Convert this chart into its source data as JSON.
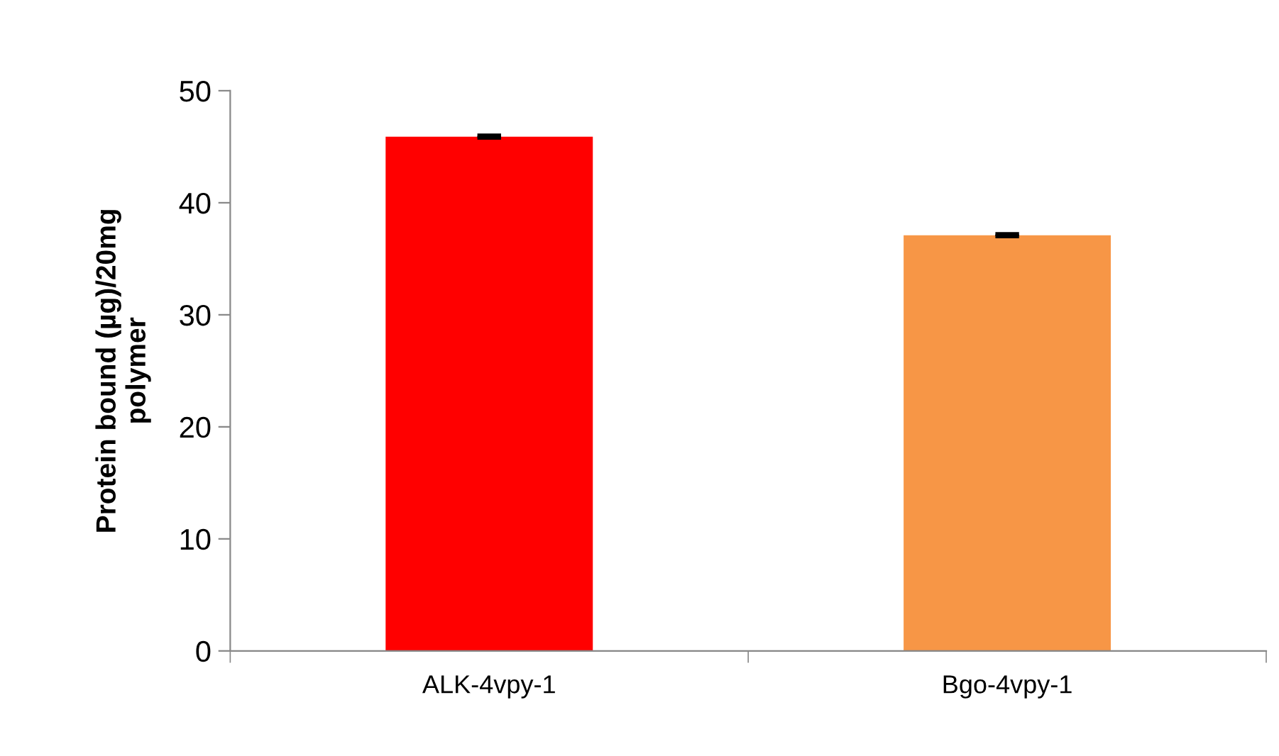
{
  "chart_data": {
    "type": "bar",
    "ylabel": "Protein bound (µg)/20mg\npolymer",
    "categories": [
      "ALK-4vpy-1",
      "Bgo-4vpy-1"
    ],
    "values": [
      45.9,
      37.1
    ],
    "colors": [
      "#ff0000",
      "#f79646"
    ],
    "errors": [
      0.1,
      0.1
    ],
    "ylim": [
      0,
      50
    ],
    "yticks": [
      0,
      10,
      20,
      30,
      40,
      50
    ],
    "grid": false,
    "legend": false
  }
}
